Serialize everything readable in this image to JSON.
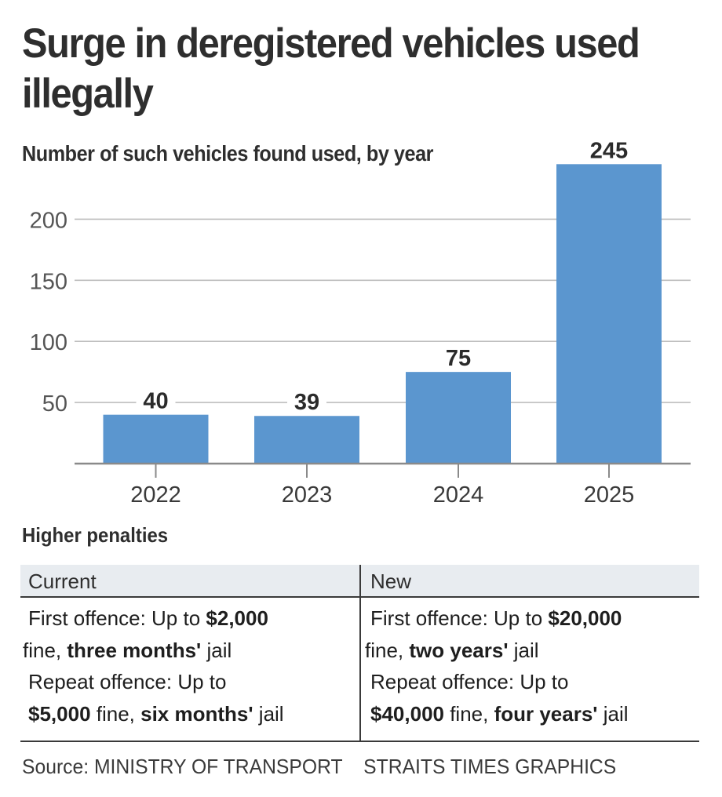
{
  "title": "Surge in deregistered vehicles used illegally",
  "subtitle": "Number of such vehicles found used, by year",
  "chart_data": {
    "type": "bar",
    "title": "Number of such vehicles found used, by year",
    "categories": [
      "2022",
      "2023",
      "2024",
      "2025"
    ],
    "values": [
      40,
      39,
      75,
      245
    ],
    "data_labels": [
      "40",
      "39",
      "75",
      "245"
    ],
    "xlabel": "",
    "ylabel": "",
    "ylim": [
      0,
      245
    ],
    "yticks": [
      50,
      100,
      150,
      200
    ],
    "ytick_labels": [
      "50",
      "100",
      "150",
      "200"
    ],
    "grid": true,
    "bar_color": "#5b96cf"
  },
  "penalties": {
    "heading": "Higher penalties",
    "columns": [
      {
        "header": "Current",
        "first_prefix": "First offence: Up to ",
        "first_amount": "$2,000",
        "first_mid": " fine, ",
        "first_jail": "three months'",
        "first_suffix": " jail",
        "repeat_prefix": "Repeat offence: Up to ",
        "repeat_amount": "$5,000",
        "repeat_mid": " fine, ",
        "repeat_jail": "six months'",
        "repeat_suffix": " jail"
      },
      {
        "header": "New",
        "first_prefix": "First offence: Up to ",
        "first_amount": "$20,000",
        "first_mid": " fine, ",
        "first_jail": "two years'",
        "first_suffix": " jail",
        "repeat_prefix": "Repeat offence: Up to ",
        "repeat_amount": "$40,000",
        "repeat_mid": " fine, ",
        "repeat_jail": "four years'",
        "repeat_suffix": " jail"
      }
    ]
  },
  "footer": {
    "source": "Source: MINISTRY OF TRANSPORT",
    "credit": "STRAITS TIMES GRAPHICS"
  }
}
